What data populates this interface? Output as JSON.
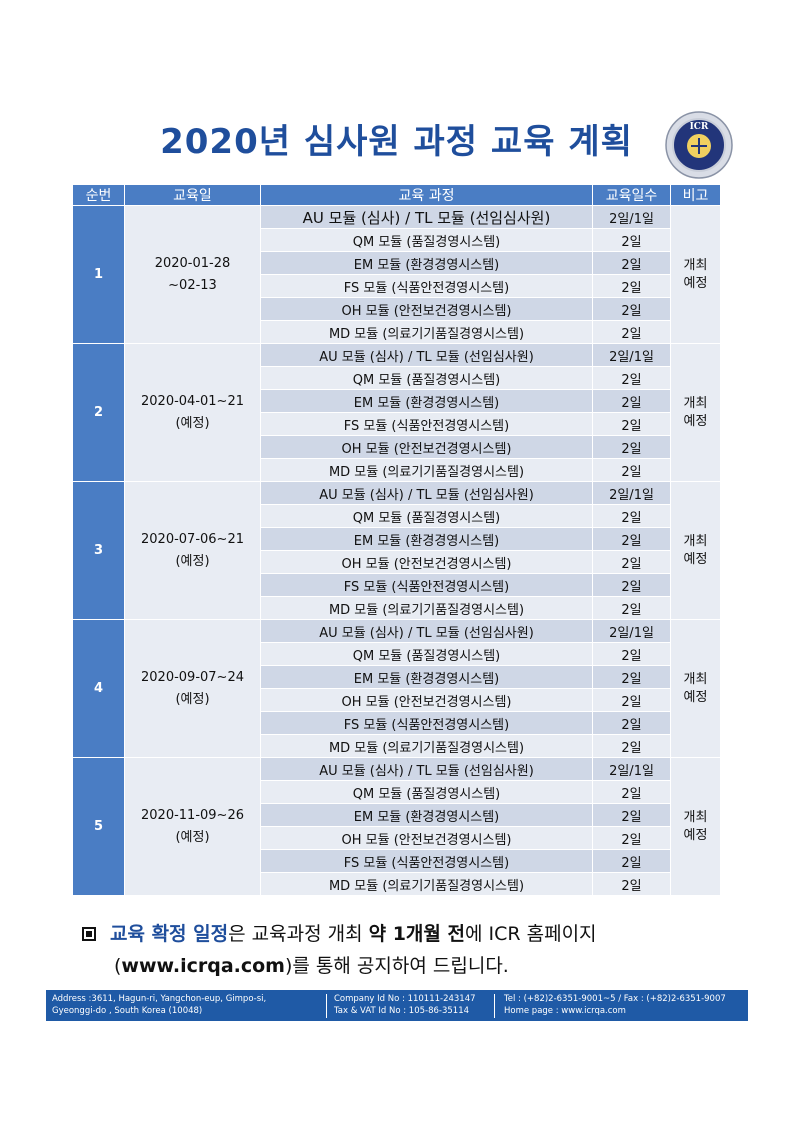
{
  "title": "2020년 심사원 과정 교육 계획",
  "logo": {
    "text": "ICR"
  },
  "table": {
    "headers": [
      "순번",
      "교육일",
      "교육 과정",
      "교육일수",
      "비고"
    ],
    "sessions": [
      {
        "no": "1",
        "date": [
          "2020-01-28",
          "~02-13"
        ],
        "note": [
          "개최",
          "예정"
        ],
        "courses": [
          {
            "name": "AU 모듈 (심사) / TL 모듈 (선임심사원)",
            "days": "2일/1일"
          },
          {
            "name": "QM 모듈 (품질경영시스템)",
            "days": "2일"
          },
          {
            "name": "EM 모듈 (환경경영시스템)",
            "days": "2일"
          },
          {
            "name": "FS 모듈 (식품안전경영시스템)",
            "days": "2일"
          },
          {
            "name": "OH 모듈 (안전보건경영시스템)",
            "days": "2일"
          },
          {
            "name": "MD 모듈 (의료기기품질경영시스템)",
            "days": "2일"
          }
        ]
      },
      {
        "no": "2",
        "date": [
          "2020-04-01~21",
          "(예정)"
        ],
        "note": [
          "개최",
          "예정"
        ],
        "courses": [
          {
            "name": "AU 모듈 (심사) / TL 모듈 (선임심사원)",
            "days": "2일/1일"
          },
          {
            "name": "QM 모듈 (품질경영시스템)",
            "days": "2일"
          },
          {
            "name": "EM 모듈 (환경경영시스템)",
            "days": "2일"
          },
          {
            "name": "FS 모듈 (식품안전경영시스템)",
            "days": "2일"
          },
          {
            "name": "OH 모듈 (안전보건경영시스템)",
            "days": "2일"
          },
          {
            "name": "MD 모듈 (의료기기품질경영시스템)",
            "days": "2일"
          }
        ]
      },
      {
        "no": "3",
        "date": [
          "2020-07-06~21",
          "(예정)"
        ],
        "note": [
          "개최",
          "예정"
        ],
        "courses": [
          {
            "name": "AU 모듈 (심사) / TL 모듈 (선임심사원)",
            "days": "2일/1일"
          },
          {
            "name": "QM 모듈 (품질경영시스템)",
            "days": "2일"
          },
          {
            "name": "EM 모듈 (환경경영시스템)",
            "days": "2일"
          },
          {
            "name": "OH 모듈 (안전보건경영시스템)",
            "days": "2일"
          },
          {
            "name": "FS 모듈 (식품안전경영시스템)",
            "days": "2일"
          },
          {
            "name": "MD 모듈 (의료기기품질경영시스템)",
            "days": "2일"
          }
        ]
      },
      {
        "no": "4",
        "date": [
          "2020-09-07~24",
          "(예정)"
        ],
        "note": [
          "개최",
          "예정"
        ],
        "courses": [
          {
            "name": "AU 모듈 (심사) / TL 모듈 (선임심사원)",
            "days": "2일/1일"
          },
          {
            "name": "QM 모듈 (품질경영시스템)",
            "days": "2일"
          },
          {
            "name": "EM 모듈 (환경경영시스템)",
            "days": "2일"
          },
          {
            "name": "OH 모듈 (안전보건경영시스템)",
            "days": "2일"
          },
          {
            "name": "FS 모듈 (식품안전경영시스템)",
            "days": "2일"
          },
          {
            "name": "MD 모듈 (의료기기품질경영시스템)",
            "days": "2일"
          }
        ]
      },
      {
        "no": "5",
        "date": [
          "2020-11-09~26",
          "(예정)"
        ],
        "note": [
          "개최",
          "예정"
        ],
        "courses": [
          {
            "name": "AU 모듈 (심사) / TL 모듈 (선임심사원)",
            "days": "2일/1일"
          },
          {
            "name": "QM 모듈 (품질경영시스템)",
            "days": "2일"
          },
          {
            "name": "EM 모듈 (환경경영시스템)",
            "days": "2일"
          },
          {
            "name": "OH 모듈 (안전보건경영시스템)",
            "days": "2일"
          },
          {
            "name": "FS 모듈 (식품안전경영시스템)",
            "days": "2일"
          },
          {
            "name": "MD 모듈 (의료기기품질경영시스템)",
            "days": "2일"
          }
        ]
      }
    ]
  },
  "notice": {
    "part1": "교육 확정 일정",
    "part2": "은 교육과정 개최 ",
    "part3": "약 1개월 전",
    "part4": "에 ICR 홈페이지",
    "line2_open": "(",
    "url": "www.icrqa.com",
    "line2_rest": ")를 통해 공지하여 드립니다."
  },
  "footer": {
    "address1": "Address :3611, Hagun-ri, Yangchon-eup, Gimpo-si,",
    "address2": "Gyeonggi-do , South Korea (10048)",
    "company_id": "Company Id No : 110111-243147",
    "tax_id": "Tax & VAT Id No : 105-86-35114",
    "tel": "Tel : (+82)2-6351-9001~5 / Fax : (+82)2-6351-9007",
    "homepage": "Home page : www.icrqa.com"
  },
  "colors": {
    "header_blue": "#4a7dc4",
    "title_blue": "#1f4e9c",
    "row_light": "#e8ecf3",
    "row_dark": "#cfd7e6",
    "footer": "#1f5aa6"
  }
}
